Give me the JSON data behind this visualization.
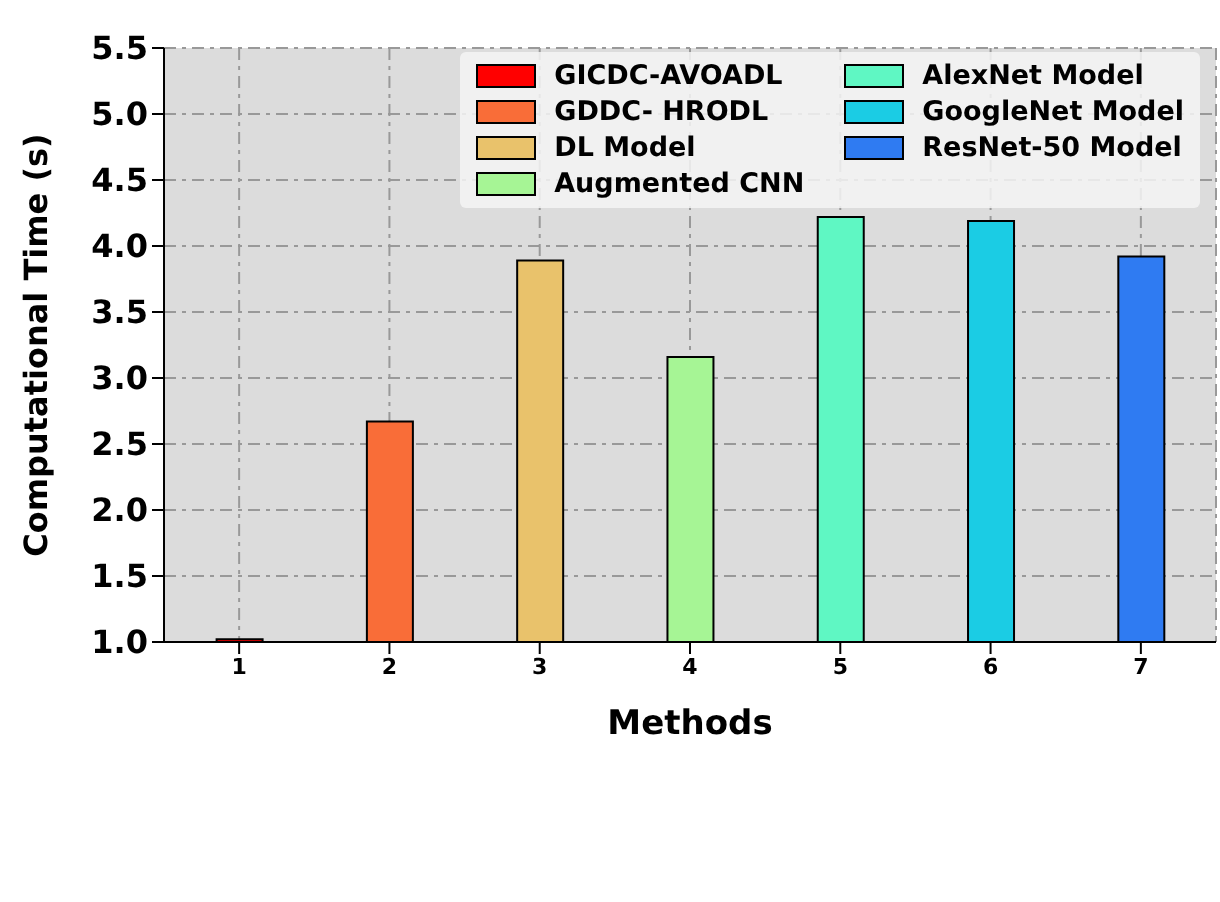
{
  "chart_data": {
    "type": "bar",
    "xlabel": "Methods",
    "ylabel": "Computational Time (s)",
    "categories": [
      "1",
      "2",
      "3",
      "4",
      "5",
      "6",
      "7"
    ],
    "series": [
      {
        "name": "GICDC-AVOADL",
        "color": "#ff0000",
        "values": [
          1.02,
          null,
          null,
          null,
          null,
          null,
          null
        ]
      },
      {
        "name": "GDDC- HRODL",
        "color": "#f96d38",
        "values": [
          null,
          2.67,
          null,
          null,
          null,
          null,
          null
        ]
      },
      {
        "name": "DL Model",
        "color": "#e9c26b",
        "values": [
          null,
          null,
          3.89,
          null,
          null,
          null,
          null
        ]
      },
      {
        "name": "Augmented CNN",
        "color": "#a6f595",
        "values": [
          null,
          null,
          null,
          3.16,
          null,
          null,
          null
        ]
      },
      {
        "name": "AlexNet Model",
        "color": "#5ff7c3",
        "values": [
          null,
          null,
          null,
          null,
          4.22,
          null,
          null
        ]
      },
      {
        "name": "GoogleNet Model",
        "color": "#1bcce4",
        "values": [
          null,
          null,
          null,
          null,
          null,
          4.19,
          null
        ]
      },
      {
        "name": "ResNet-50 Model",
        "color": "#2f7bf2",
        "values": [
          null,
          null,
          null,
          null,
          null,
          null,
          3.92
        ]
      }
    ],
    "ylim": [
      1,
      5.5
    ],
    "yticks": [
      {
        "value": 1,
        "label": "1.0"
      },
      {
        "value": 1.5,
        "label": "1.5"
      },
      {
        "value": 2,
        "label": "2.0"
      },
      {
        "value": 2.5,
        "label": "2.5"
      },
      {
        "value": 3,
        "label": "3.0"
      },
      {
        "value": 3.5,
        "label": "3.5"
      },
      {
        "value": 4,
        "label": "4.0"
      },
      {
        "value": 4.5,
        "label": "4.5"
      },
      {
        "value": 5,
        "label": "5.0"
      },
      {
        "value": 5.5,
        "label": "5.5"
      }
    ],
    "grid": true,
    "legend": "top right"
  }
}
